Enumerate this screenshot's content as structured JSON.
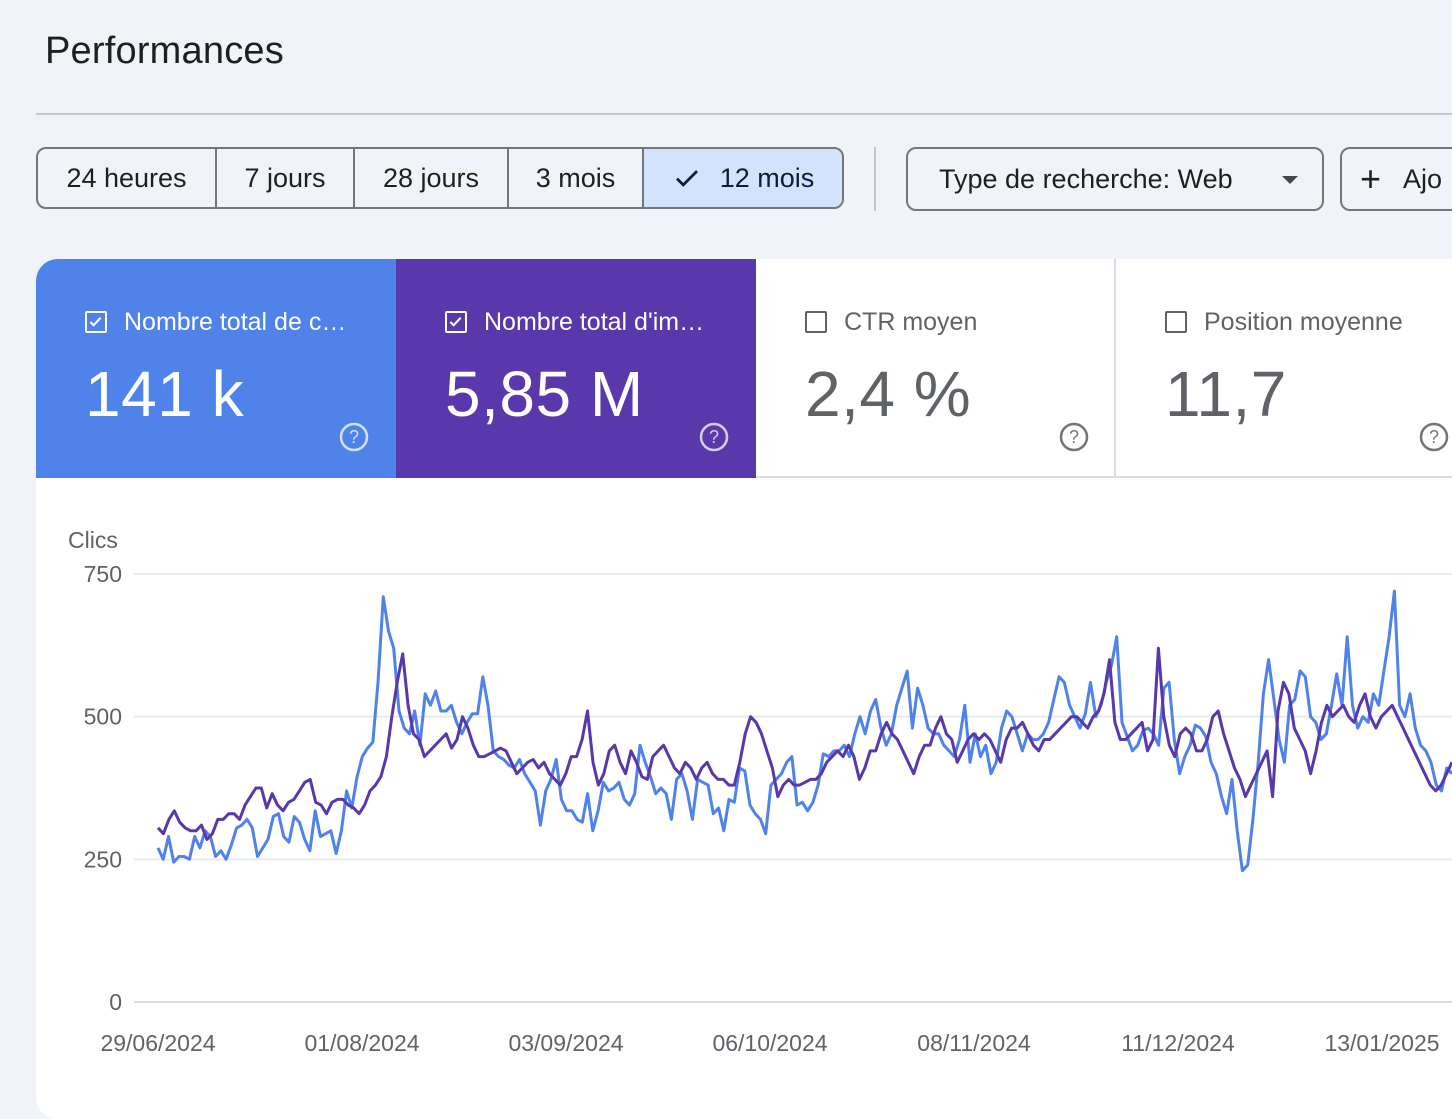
{
  "page": {
    "title": "Performances"
  },
  "toolbar": {
    "ranges": [
      {
        "label": "24 heures",
        "selected": false
      },
      {
        "label": "7 jours",
        "selected": false
      },
      {
        "label": "28 jours",
        "selected": false
      },
      {
        "label": "3 mois",
        "selected": false
      },
      {
        "label": "12 mois",
        "selected": true
      }
    ],
    "search_type_label": "Type de recherche: Web",
    "add_label": "Ajo",
    "icons": {
      "selected": "check-icon",
      "dropdown": "caret-down-icon",
      "add": "plus-icon"
    }
  },
  "metrics": [
    {
      "label": "Nombre total de c…",
      "value": "141 k",
      "checked": true,
      "color": "#4f83ea"
    },
    {
      "label": "Nombre total d'im…",
      "value": "5,85 M",
      "checked": true,
      "color": "#5838aa"
    },
    {
      "label": "CTR moyen",
      "value": "2,4 %",
      "checked": false
    },
    {
      "label": "Position moyenne",
      "value": "11,7",
      "checked": false
    }
  ],
  "chart_data": {
    "type": "line",
    "ylabel": "Clics",
    "ylim": [
      0,
      750
    ],
    "yticks": [
      {
        "value": 0,
        "label": "0"
      },
      {
        "value": 250,
        "label": "250"
      },
      {
        "value": 500,
        "label": "500"
      },
      {
        "value": 750,
        "label": "750"
      }
    ],
    "xticks": [
      "29/06/2024",
      "01/08/2024",
      "03/09/2024",
      "06/10/2024",
      "08/11/2024",
      "11/12/2024",
      "13/01/2025"
    ],
    "grid": true,
    "series": [
      {
        "color": "#4f83ea",
        "values": [
          270,
          250,
          290,
          245,
          255,
          255,
          250,
          290,
          270,
          300,
          290,
          255,
          265,
          250,
          275,
          305,
          310,
          320,
          305,
          255,
          270,
          285,
          325,
          330,
          290,
          280,
          325,
          315,
          285,
          265,
          335,
          290,
          295,
          300,
          260,
          300,
          370,
          340,
          395,
          430,
          445,
          455,
          560,
          710,
          650,
          620,
          510,
          480,
          470,
          510,
          450,
          540,
          520,
          545,
          510,
          510,
          520,
          490,
          470,
          490,
          505,
          505,
          570,
          520,
          440,
          430,
          425,
          415,
          410,
          425,
          400,
          385,
          370,
          310,
          370,
          390,
          425,
          355,
          335,
          335,
          320,
          315,
          365,
          300,
          335,
          385,
          370,
          375,
          385,
          355,
          345,
          365,
          450,
          420,
          395,
          365,
          375,
          365,
          320,
          390,
          400,
          370,
          320,
          390,
          385,
          380,
          330,
          340,
          300,
          355,
          350,
          410,
          405,
          345,
          330,
          320,
          295,
          380,
          390,
          400,
          420,
          430,
          345,
          350,
          335,
          350,
          380,
          435,
          430,
          440,
          440,
          450,
          430,
          470,
          500,
          470,
          510,
          530,
          480,
          450,
          470,
          520,
          550,
          580,
          480,
          550,
          520,
          480,
          470,
          470,
          450,
          440,
          430,
          460,
          520,
          420,
          470,
          430,
          450,
          400,
          420,
          480,
          510,
          500,
          470,
          440,
          470,
          460,
          460,
          470,
          490,
          530,
          570,
          560,
          520,
          500,
          480,
          505,
          560,
          500,
          520,
          560,
          590,
          640,
          490,
          465,
          440,
          450,
          475,
          480,
          470,
          450,
          550,
          560,
          460,
          400,
          430,
          450,
          485,
          480,
          465,
          420,
          400,
          360,
          330,
          390,
          300,
          230,
          240,
          320,
          420,
          540,
          600,
          530,
          460,
          420,
          520,
          530,
          580,
          570,
          500,
          490,
          460,
          470,
          520,
          575,
          520,
          640,
          520,
          480,
          500,
          490,
          540,
          520,
          580,
          640,
          720,
          520,
          500,
          540,
          480,
          450,
          440,
          420,
          380,
          370,
          410,
          400
        ]
      },
      {
        "color": "#5838aa",
        "values": [
          305,
          295,
          320,
          335,
          315,
          305,
          300,
          300,
          310,
          285,
          295,
          320,
          320,
          330,
          330,
          320,
          345,
          360,
          375,
          375,
          340,
          365,
          345,
          335,
          350,
          355,
          370,
          385,
          390,
          350,
          345,
          330,
          350,
          355,
          355,
          345,
          340,
          330,
          345,
          370,
          380,
          395,
          430,
          500,
          560,
          610,
          520,
          470,
          460,
          430,
          440,
          450,
          460,
          470,
          445,
          460,
          500,
          480,
          450,
          430,
          430,
          435,
          440,
          445,
          440,
          420,
          400,
          410,
          420,
          425,
          410,
          420,
          400,
          390,
          380,
          400,
          430,
          430,
          460,
          510,
          420,
          380,
          400,
          440,
          450,
          420,
          400,
          440,
          420,
          395,
          390,
          430,
          440,
          450,
          430,
          410,
          400,
          420,
          410,
          390,
          410,
          420,
          400,
          390,
          390,
          380,
          380,
          420,
          470,
          500,
          490,
          470,
          440,
          410,
          360,
          380,
          390,
          380,
          380,
          385,
          390,
          390,
          400,
          420,
          430,
          440,
          430,
          450,
          430,
          390,
          410,
          440,
          440,
          470,
          490,
          470,
          460,
          440,
          420,
          400,
          430,
          450,
          450,
          480,
          500,
          470,
          460,
          420,
          440,
          460,
          470,
          460,
          470,
          460,
          440,
          420,
          460,
          480,
          480,
          490,
          470,
          450,
          440,
          460,
          460,
          470,
          480,
          490,
          500,
          500,
          490,
          480,
          500,
          510,
          540,
          600,
          490,
          460,
          460,
          470,
          480,
          490,
          440,
          460,
          620,
          500,
          450,
          430,
          470,
          480,
          470,
          440,
          440,
          460,
          500,
          510,
          470,
          440,
          410,
          390,
          360,
          380,
          400,
          420,
          440,
          360,
          510,
          560,
          540,
          480,
          460,
          440,
          400,
          440,
          490,
          520,
          500,
          510,
          520,
          500,
          490,
          520,
          540,
          500,
          480,
          500,
          510,
          520,
          500,
          480,
          460,
          440,
          420,
          400,
          380,
          370,
          380,
          400,
          420
        ]
      }
    ]
  }
}
